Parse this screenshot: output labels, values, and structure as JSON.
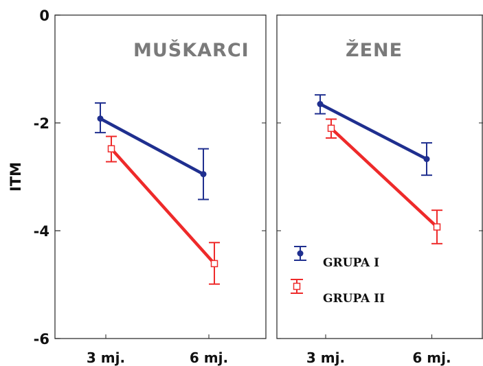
{
  "chart_data": {
    "type": "line",
    "ylabel": "ITM",
    "ylim": [
      -6,
      0
    ],
    "yticks": [
      "0",
      "-2",
      "-4",
      "-6"
    ],
    "categories": [
      "3 mj.",
      "6 mj."
    ],
    "grid": false,
    "legend": {
      "placement": "bottom-right",
      "entries": [
        {
          "name": "GRUPA I",
          "color": "#1f2f8f",
          "marker": "filled-circle"
        },
        {
          "name": "GRUPA II",
          "color": "#ee2a2a",
          "marker": "open-square"
        }
      ]
    },
    "panels": [
      {
        "title": "MUŠKARCI",
        "series": [
          {
            "name": "GRUPA I",
            "values": [
              -1.92,
              -2.95
            ],
            "err_low": [
              -2.18,
              -3.42
            ],
            "err_high": [
              -1.63,
              -2.48
            ]
          },
          {
            "name": "GRUPA II",
            "values": [
              -2.48,
              -4.61
            ],
            "err_low": [
              -2.72,
              -4.99
            ],
            "err_high": [
              -2.25,
              -4.22
            ]
          }
        ]
      },
      {
        "title": "ŽENE",
        "series": [
          {
            "name": "GRUPA I",
            "values": [
              -1.65,
              -2.67
            ],
            "err_low": [
              -1.83,
              -2.97
            ],
            "err_high": [
              -1.48,
              -2.37
            ]
          },
          {
            "name": "GRUPA II",
            "values": [
              -2.1,
              -3.93
            ],
            "err_low": [
              -2.28,
              -4.24
            ],
            "err_high": [
              -1.93,
              -3.62
            ]
          }
        ]
      }
    ]
  }
}
